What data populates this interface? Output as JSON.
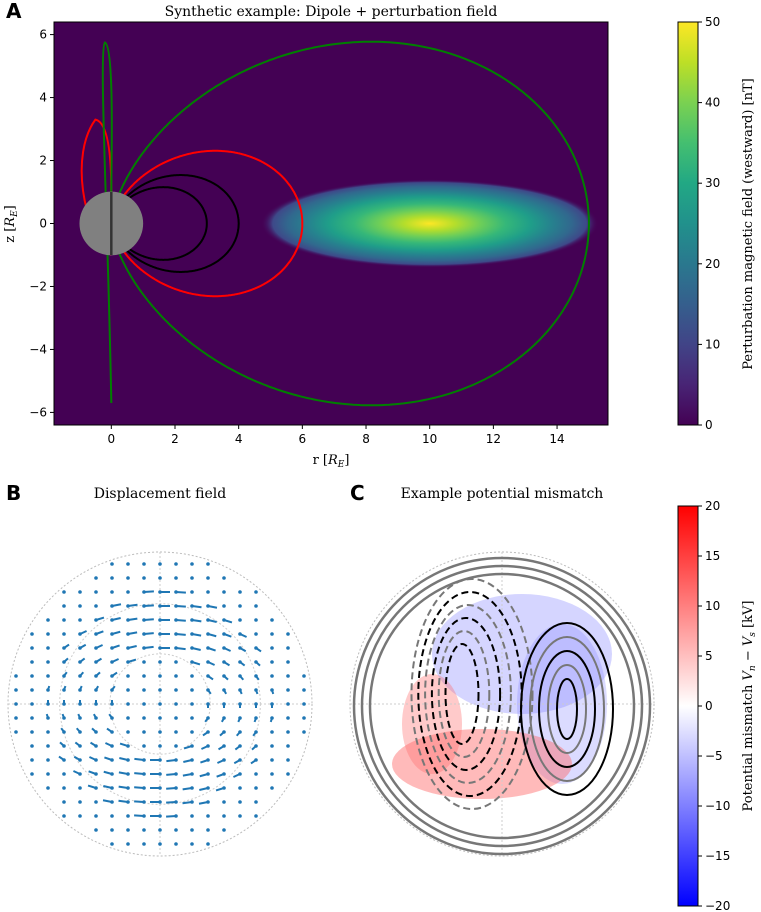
{
  "chart_data": [
    {
      "panel": "A",
      "type": "heatmap",
      "title": "Synthetic example: Dipole + perturbation field",
      "xlabel": "r [R_E]",
      "ylabel": "z [R_E]",
      "xlim": [
        -1.8,
        15.6
      ],
      "ylim": [
        -6.4,
        6.4
      ],
      "xticks": [
        0,
        2,
        4,
        6,
        8,
        10,
        12,
        14
      ],
      "yticks": [
        -6,
        -4,
        -2,
        0,
        2,
        4,
        6
      ],
      "field_center": [
        10,
        0
      ],
      "field_peak": 50,
      "colorbar": {
        "label": "Perturbation magnetic field (westward) [nT]",
        "range": [
          0,
          50
        ],
        "ticks": [
          0,
          10,
          20,
          30,
          40,
          50
        ]
      },
      "field_lines": [
        {
          "L": 3,
          "color": "#000000"
        },
        {
          "L": 4,
          "color": "#000000"
        },
        {
          "L": 6,
          "color": "#ff0000"
        },
        {
          "L": 15,
          "color": "#008000"
        }
      ],
      "earth_color": "#808080"
    },
    {
      "panel": "B",
      "type": "scatter",
      "title": "Displacement field",
      "marker_color": "#1f77b4"
    },
    {
      "panel": "C",
      "type": "contour",
      "title": "Example potential mismatch",
      "colorbar": {
        "label": "Potential mismatch V_n − V_s [kV]",
        "range": [
          -20,
          20
        ],
        "ticks": [
          -20,
          -15,
          -10,
          -5,
          0,
          5,
          10,
          15,
          20
        ]
      }
    }
  ],
  "labels": {
    "panel_a": "A",
    "panel_b": "B",
    "panel_c": "C",
    "x_label_main": "r [",
    "x_label_sub": "R",
    "x_label_e": "E",
    "x_label_end": "]",
    "y_label_main": "z [",
    "cbar_a_label": "Perturbation magnetic field (westward) [nT]",
    "cbar_c_label": "Potential mismatch"
  }
}
